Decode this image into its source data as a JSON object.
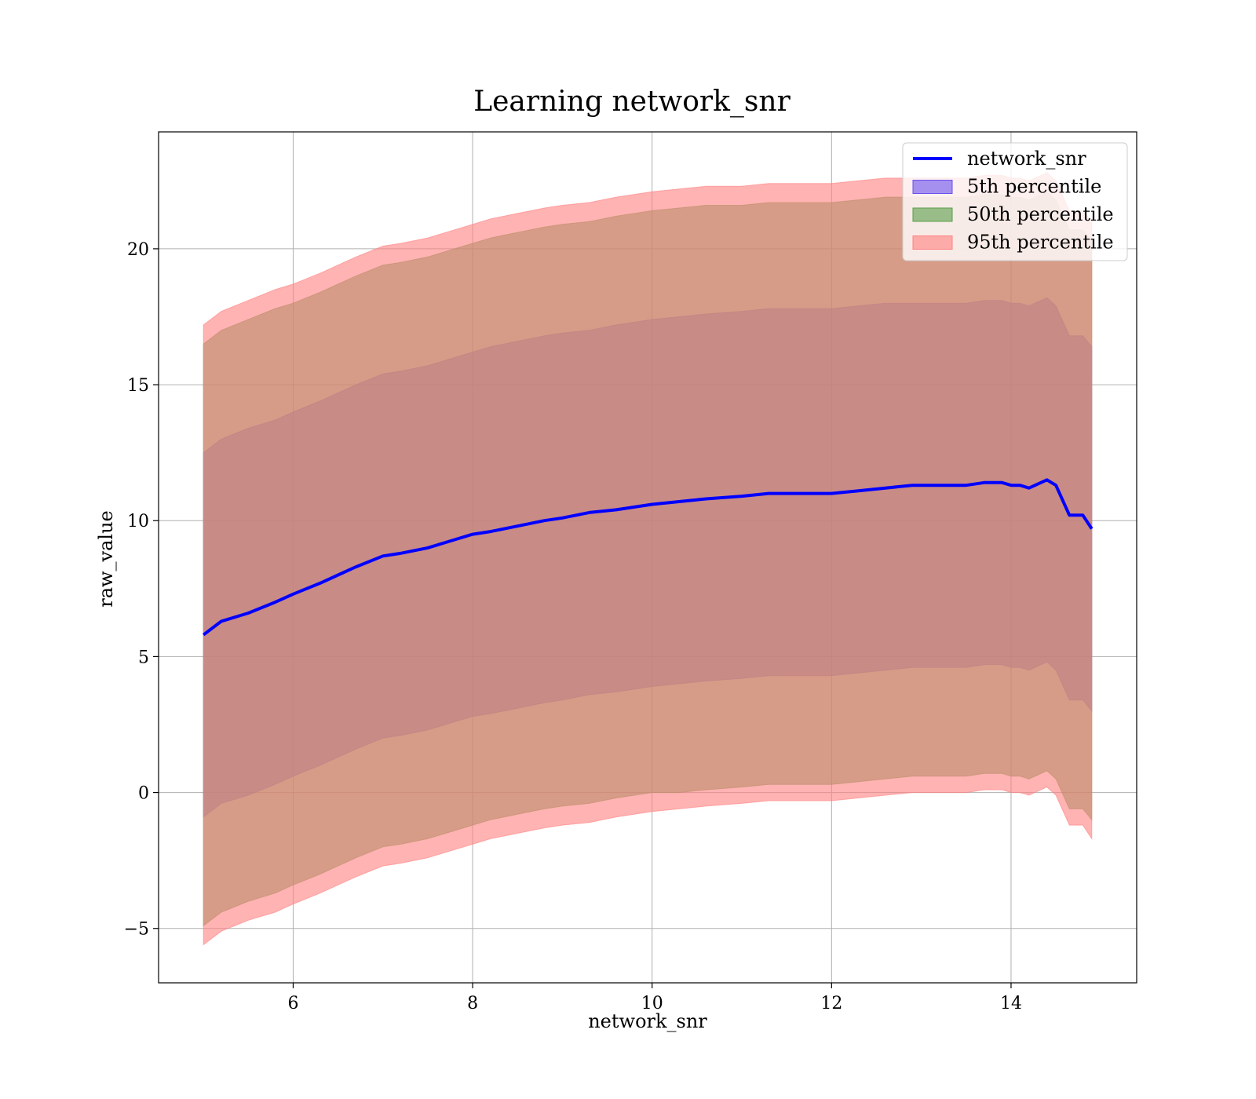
{
  "chart_data": {
    "type": "area",
    "title": "Learning network_snr",
    "xlabel": "network_snr",
    "ylabel": "raw_value",
    "xlim": [
      4.5,
      15.4
    ],
    "ylim": [
      -7,
      24.3
    ],
    "xticks": [
      6,
      8,
      10,
      12,
      14
    ],
    "yticks": [
      -5,
      0,
      5,
      10,
      15,
      20
    ],
    "ytick_labels": [
      "−5",
      "0",
      "5",
      "10",
      "15",
      "20"
    ],
    "grid": true,
    "legend_position": "top-right",
    "x": [
      5.0,
      5.2,
      5.5,
      5.8,
      6.0,
      6.3,
      6.5,
      6.7,
      7.0,
      7.2,
      7.5,
      7.8,
      8.0,
      8.2,
      8.5,
      8.8,
      9.0,
      9.3,
      9.6,
      10.0,
      10.3,
      10.6,
      11.0,
      11.3,
      11.6,
      12.0,
      12.3,
      12.6,
      12.9,
      13.1,
      13.3,
      13.5,
      13.7,
      13.9,
      14.0,
      14.1,
      14.2,
      14.4,
      14.5,
      14.65,
      14.8,
      14.9
    ],
    "series": [
      {
        "name": "network_snr",
        "kind": "line",
        "color": "#0000ff",
        "values": [
          5.8,
          6.3,
          6.6,
          7.0,
          7.3,
          7.7,
          8.0,
          8.3,
          8.7,
          8.8,
          9.0,
          9.3,
          9.5,
          9.6,
          9.8,
          10.0,
          10.1,
          10.3,
          10.4,
          10.6,
          10.7,
          10.8,
          10.9,
          11.0,
          11.0,
          11.0,
          11.1,
          11.2,
          11.3,
          11.3,
          11.3,
          11.3,
          11.4,
          11.4,
          11.3,
          11.3,
          11.2,
          11.5,
          11.3,
          10.2,
          10.2,
          9.7
        ]
      },
      {
        "name": "5th percentile",
        "kind": "band",
        "color": "#6a50ee",
        "upper": [
          12.5,
          13.0,
          13.4,
          13.7,
          14.0,
          14.4,
          14.7,
          15.0,
          15.4,
          15.5,
          15.7,
          16.0,
          16.2,
          16.4,
          16.6,
          16.8,
          16.9,
          17.0,
          17.2,
          17.4,
          17.5,
          17.6,
          17.7,
          17.8,
          17.8,
          17.8,
          17.9,
          18.0,
          18.0,
          18.0,
          18.0,
          18.0,
          18.1,
          18.1,
          18.0,
          18.0,
          17.9,
          18.2,
          17.9,
          16.8,
          16.8,
          16.4
        ],
        "lower": [
          -0.9,
          -0.4,
          -0.1,
          0.3,
          0.6,
          1.0,
          1.3,
          1.6,
          2.0,
          2.1,
          2.3,
          2.6,
          2.8,
          2.9,
          3.1,
          3.3,
          3.4,
          3.6,
          3.7,
          3.9,
          4.0,
          4.1,
          4.2,
          4.3,
          4.3,
          4.3,
          4.4,
          4.5,
          4.6,
          4.6,
          4.6,
          4.6,
          4.7,
          4.7,
          4.6,
          4.6,
          4.5,
          4.8,
          4.5,
          3.4,
          3.4,
          3.0
        ]
      },
      {
        "name": "50th percentile",
        "kind": "band",
        "color": "#5a9e4a",
        "upper": [
          16.5,
          17.0,
          17.4,
          17.8,
          18.0,
          18.4,
          18.7,
          19.0,
          19.4,
          19.5,
          19.7,
          20.0,
          20.2,
          20.4,
          20.6,
          20.8,
          20.9,
          21.0,
          21.2,
          21.4,
          21.5,
          21.6,
          21.6,
          21.7,
          21.7,
          21.7,
          21.8,
          21.9,
          21.9,
          21.9,
          21.9,
          21.9,
          22.0,
          22.0,
          21.9,
          21.9,
          21.8,
          22.1,
          21.8,
          20.7,
          20.7,
          20.3
        ],
        "lower": [
          -4.9,
          -4.4,
          -4.0,
          -3.7,
          -3.4,
          -3.0,
          -2.7,
          -2.4,
          -2.0,
          -1.9,
          -1.7,
          -1.4,
          -1.2,
          -1.0,
          -0.8,
          -0.6,
          -0.5,
          -0.4,
          -0.2,
          0.0,
          0.0,
          0.1,
          0.2,
          0.3,
          0.3,
          0.3,
          0.4,
          0.5,
          0.6,
          0.6,
          0.6,
          0.6,
          0.7,
          0.7,
          0.6,
          0.6,
          0.5,
          0.8,
          0.5,
          -0.6,
          -0.6,
          -1.0
        ]
      },
      {
        "name": "95th percentile",
        "kind": "band",
        "color": "#ff8080",
        "upper": [
          17.2,
          17.7,
          18.1,
          18.5,
          18.7,
          19.1,
          19.4,
          19.7,
          20.1,
          20.2,
          20.4,
          20.7,
          20.9,
          21.1,
          21.3,
          21.5,
          21.6,
          21.7,
          21.9,
          22.1,
          22.2,
          22.3,
          22.3,
          22.4,
          22.4,
          22.4,
          22.5,
          22.6,
          22.6,
          22.6,
          22.6,
          22.6,
          22.7,
          22.7,
          22.6,
          22.6,
          22.5,
          22.8,
          22.5,
          21.4,
          21.4,
          21.0
        ],
        "lower": [
          -5.6,
          -5.1,
          -4.7,
          -4.4,
          -4.1,
          -3.7,
          -3.4,
          -3.1,
          -2.7,
          -2.6,
          -2.4,
          -2.1,
          -1.9,
          -1.7,
          -1.5,
          -1.3,
          -1.2,
          -1.1,
          -0.9,
          -0.7,
          -0.6,
          -0.5,
          -0.4,
          -0.3,
          -0.3,
          -0.3,
          -0.2,
          -0.1,
          0.0,
          0.0,
          0.0,
          0.0,
          0.1,
          0.1,
          0.0,
          0.0,
          -0.1,
          0.2,
          -0.1,
          -1.2,
          -1.2,
          -1.7
        ]
      }
    ]
  }
}
